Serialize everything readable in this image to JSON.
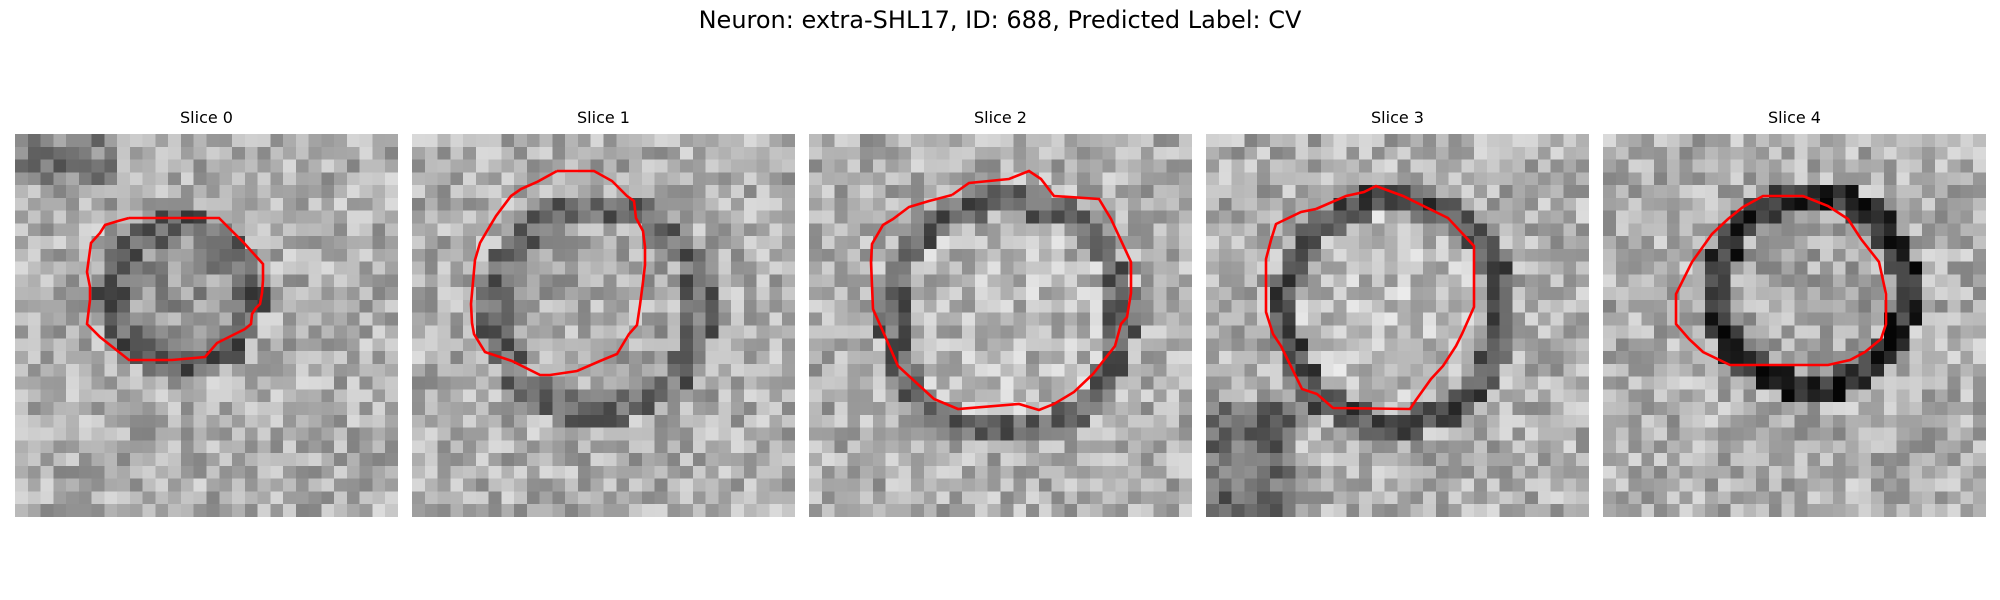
{
  "figure": {
    "title": "Neuron: extra-SHL17, ID: 688, Predicted Label: CV"
  },
  "panels": [
    {
      "title": "Slice 0"
    },
    {
      "title": "Slice 1"
    },
    {
      "title": "Slice 2"
    },
    {
      "title": "Slice 3"
    },
    {
      "title": "Slice 4"
    }
  ],
  "colors": {
    "contour": "#ff0000",
    "background": "#ffffff"
  }
}
